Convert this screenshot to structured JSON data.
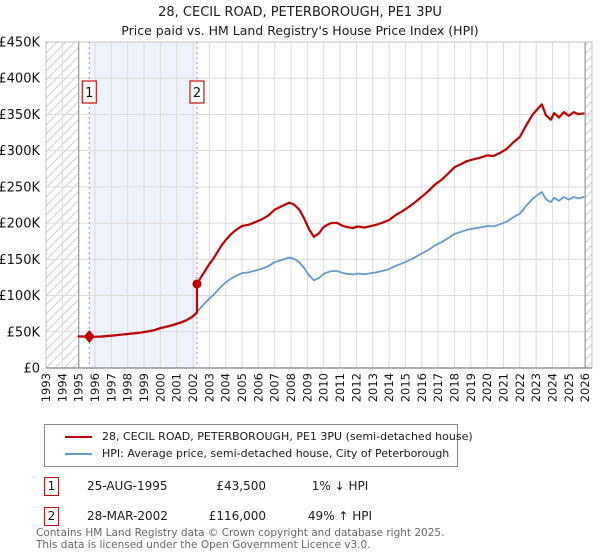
{
  "title": "28, CECIL ROAD, PETERBOROUGH, PE1 3PU",
  "subtitle": "Price paid vs. HM Land Registry's House Price Index (HPI)",
  "colors": {
    "property_line": "#c00000",
    "hpi_line": "#6699cc",
    "sale_dotted_line": "#f47c7c",
    "between_sales_shade": "#eef2fb",
    "grid": "#dcdcdc",
    "plot_border": "#c4c4c4",
    "axis_line": "#808080",
    "hatch_line": "#cfcfcf",
    "hatch_edge": "#999999",
    "marker_box_border": "#c41111"
  },
  "chart_data": {
    "type": "line",
    "title": "Price paid vs. HM Land Registry's House Price Index (HPI)",
    "unit": "GBP thousands",
    "x_axis": {
      "range": [
        1993,
        2026.42
      ],
      "ticks": [
        "1993",
        "1994",
        "1995",
        "1996",
        "1997",
        "1998",
        "1999",
        "2000",
        "2001",
        "2002",
        "2003",
        "2004",
        "2005",
        "2006",
        "2007",
        "2008",
        "2009",
        "2010",
        "2011",
        "2012",
        "2013",
        "2014",
        "2015",
        "2016",
        "2017",
        "2018",
        "2019",
        "2020",
        "2021",
        "2022",
        "2023",
        "2024",
        "2025",
        "2026"
      ]
    },
    "y_axis": {
      "range": [
        0,
        450
      ],
      "tick_values": [
        0,
        50,
        100,
        150,
        200,
        250,
        300,
        350,
        400,
        450
      ],
      "tick_labels": [
        "£0",
        "£50K",
        "£100K",
        "£150K",
        "£200K",
        "£250K",
        "£300K",
        "£350K",
        "£400K",
        "£450K"
      ]
    },
    "grid": true,
    "no_data_hatch_regions": [
      [
        1993,
        1995.0
      ],
      [
        2026.0,
        2026.42
      ]
    ],
    "shaded_region": [
      1995.65,
      2002.24
    ],
    "sale_markers": [
      {
        "label": "1",
        "x": 1995.65,
        "y": 43.5,
        "shape": "diamond"
      },
      {
        "label": "2",
        "x": 2002.24,
        "y": 116,
        "shape": "circle"
      }
    ],
    "series": [
      {
        "name": "HPI: Average price, semi-detached house, City of Peterborough",
        "color": "#6699cc",
        "width": 1.8,
        "points": [
          [
            1995.0,
            44
          ],
          [
            1995.3,
            43.7
          ],
          [
            1995.65,
            44
          ],
          [
            1996.0,
            43.4
          ],
          [
            1996.4,
            43.9
          ],
          [
            1996.8,
            44.6
          ],
          [
            1997.2,
            45.4
          ],
          [
            1997.6,
            46.3
          ],
          [
            1998.0,
            47.5
          ],
          [
            1998.4,
            48.2
          ],
          [
            1998.8,
            49.3
          ],
          [
            1999.2,
            50.8
          ],
          [
            1999.6,
            52.5
          ],
          [
            2000.0,
            55.5
          ],
          [
            2000.4,
            57.5
          ],
          [
            2000.8,
            60
          ],
          [
            2001.2,
            63
          ],
          [
            2001.6,
            66.5
          ],
          [
            2002.0,
            72
          ],
          [
            2002.24,
            77.5
          ],
          [
            2002.5,
            84
          ],
          [
            2002.75,
            90
          ],
          [
            2003.0,
            96
          ],
          [
            2003.25,
            101
          ],
          [
            2003.5,
            107
          ],
          [
            2003.75,
            113
          ],
          [
            2004.0,
            118
          ],
          [
            2004.3,
            123
          ],
          [
            2004.6,
            127
          ],
          [
            2005.0,
            131
          ],
          [
            2005.4,
            132
          ],
          [
            2005.8,
            134.5
          ],
          [
            2006.2,
            137
          ],
          [
            2006.6,
            140.5
          ],
          [
            2007.0,
            146
          ],
          [
            2007.4,
            149
          ],
          [
            2007.9,
            152.5
          ],
          [
            2008.2,
            150.5
          ],
          [
            2008.5,
            146
          ],
          [
            2008.8,
            138
          ],
          [
            2009.1,
            128
          ],
          [
            2009.4,
            121
          ],
          [
            2009.7,
            124
          ],
          [
            2010.0,
            130
          ],
          [
            2010.4,
            133.5
          ],
          [
            2010.8,
            134
          ],
          [
            2011.1,
            131.5
          ],
          [
            2011.4,
            130
          ],
          [
            2011.8,
            129
          ],
          [
            2012.1,
            130.5
          ],
          [
            2012.5,
            129.5
          ],
          [
            2012.9,
            131
          ],
          [
            2013.2,
            132
          ],
          [
            2013.6,
            134
          ],
          [
            2014.0,
            136.5
          ],
          [
            2014.4,
            141
          ],
          [
            2014.8,
            144.5
          ],
          [
            2015.2,
            148.5
          ],
          [
            2015.6,
            153
          ],
          [
            2016.0,
            158
          ],
          [
            2016.4,
            163
          ],
          [
            2016.8,
            169
          ],
          [
            2017.2,
            173.5
          ],
          [
            2017.6,
            179
          ],
          [
            2018.0,
            185
          ],
          [
            2018.4,
            188
          ],
          [
            2018.8,
            191
          ],
          [
            2019.2,
            192.5
          ],
          [
            2019.6,
            194
          ],
          [
            2020.0,
            196
          ],
          [
            2020.4,
            195.5
          ],
          [
            2020.8,
            198.5
          ],
          [
            2021.2,
            202
          ],
          [
            2021.6,
            208
          ],
          [
            2022.0,
            213
          ],
          [
            2022.4,
            224
          ],
          [
            2022.8,
            234
          ],
          [
            2023.1,
            239
          ],
          [
            2023.35,
            243
          ],
          [
            2023.6,
            233
          ],
          [
            2023.9,
            229
          ],
          [
            2024.1,
            235
          ],
          [
            2024.4,
            231
          ],
          [
            2024.7,
            236
          ],
          [
            2025.0,
            232.5
          ],
          [
            2025.3,
            236
          ],
          [
            2025.6,
            234
          ],
          [
            2025.9,
            236
          ]
        ]
      },
      {
        "name": "28, CECIL ROAD, PETERBOROUGH, PE1 3PU (semi-detached house)",
        "color": "#c00000",
        "width": 2.2,
        "points": [
          [
            1995.0,
            43.6
          ],
          [
            1995.3,
            43.3
          ],
          [
            1995.65,
            43.5
          ],
          [
            1996.0,
            43.0
          ],
          [
            1996.4,
            43.4
          ],
          [
            1996.8,
            44.2
          ],
          [
            1997.2,
            45.0
          ],
          [
            1997.6,
            45.9
          ],
          [
            1998.0,
            47.0
          ],
          [
            1998.4,
            47.8
          ],
          [
            1998.8,
            48.9
          ],
          [
            1999.2,
            50.3
          ],
          [
            1999.6,
            52.0
          ],
          [
            2000.0,
            55.0
          ],
          [
            2000.4,
            57.0
          ],
          [
            2000.8,
            59.5
          ],
          [
            2001.2,
            62.4
          ],
          [
            2001.6,
            65.9
          ],
          [
            2002.0,
            71.3
          ],
          [
            2002.24,
            76.8
          ],
          [
            2002.24,
            116
          ],
          [
            2002.5,
            125.7
          ],
          [
            2002.75,
            134.7
          ],
          [
            2003.0,
            143.7
          ],
          [
            2003.25,
            151.2
          ],
          [
            2003.5,
            160.2
          ],
          [
            2003.75,
            169.2
          ],
          [
            2004.0,
            176.6
          ],
          [
            2004.3,
            184.1
          ],
          [
            2004.6,
            190.1
          ],
          [
            2005.0,
            196.1
          ],
          [
            2005.4,
            197.6
          ],
          [
            2005.8,
            201.3
          ],
          [
            2006.2,
            205.1
          ],
          [
            2006.6,
            210.3
          ],
          [
            2007.0,
            218.5
          ],
          [
            2007.4,
            223
          ],
          [
            2007.9,
            228.3
          ],
          [
            2008.2,
            225.3
          ],
          [
            2008.5,
            218.6
          ],
          [
            2008.8,
            206.6
          ],
          [
            2009.1,
            191.6
          ],
          [
            2009.4,
            181.1
          ],
          [
            2009.7,
            185.6
          ],
          [
            2010.0,
            194.6
          ],
          [
            2010.4,
            199.8
          ],
          [
            2010.8,
            200.6
          ],
          [
            2011.1,
            196.8
          ],
          [
            2011.4,
            194.6
          ],
          [
            2011.8,
            193.1
          ],
          [
            2012.1,
            195.4
          ],
          [
            2012.5,
            193.8
          ],
          [
            2012.9,
            196.1
          ],
          [
            2013.2,
            197.6
          ],
          [
            2013.6,
            200.6
          ],
          [
            2014.0,
            204.3
          ],
          [
            2014.4,
            211.1
          ],
          [
            2014.8,
            216.3
          ],
          [
            2015.2,
            222.3
          ],
          [
            2015.6,
            229
          ],
          [
            2016.0,
            236.5
          ],
          [
            2016.4,
            244
          ],
          [
            2016.8,
            253
          ],
          [
            2017.2,
            259.7
          ],
          [
            2017.6,
            268
          ],
          [
            2018.0,
            277
          ],
          [
            2018.4,
            281.4
          ],
          [
            2018.8,
            285.9
          ],
          [
            2019.2,
            288.2
          ],
          [
            2019.6,
            290.4
          ],
          [
            2020.0,
            293.4
          ],
          [
            2020.4,
            292.6
          ],
          [
            2020.8,
            297.1
          ],
          [
            2021.2,
            302.4
          ],
          [
            2021.6,
            311.4
          ],
          [
            2022.0,
            318.9
          ],
          [
            2022.4,
            335.3
          ],
          [
            2022.8,
            350.3
          ],
          [
            2023.1,
            357.8
          ],
          [
            2023.35,
            363.8
          ],
          [
            2023.6,
            348.8
          ],
          [
            2023.9,
            342.8
          ],
          [
            2024.1,
            351.8
          ],
          [
            2024.4,
            345.8
          ],
          [
            2024.7,
            353.3
          ],
          [
            2025.0,
            348.1
          ],
          [
            2025.3,
            353.3
          ],
          [
            2025.6,
            350.3
          ],
          [
            2025.9,
            351.5
          ]
        ]
      }
    ]
  },
  "legend": {
    "items": [
      {
        "label": "28, CECIL ROAD, PETERBOROUGH, PE1 3PU (semi-detached house)",
        "color": "#c00000"
      },
      {
        "label": "HPI: Average price, semi-detached house, City of Peterborough",
        "color": "#6699cc"
      }
    ]
  },
  "annotations": [
    {
      "num": "1",
      "date": "25-AUG-1995",
      "price": "£43,500",
      "hpi": "1% ↓ HPI"
    },
    {
      "num": "2",
      "date": "28-MAR-2002",
      "price": "£116,000",
      "hpi": "49% ↑ HPI"
    }
  ],
  "footer": {
    "line1": "Contains HM Land Registry data © Crown copyright and database right 2025.",
    "line2": "This data is licensed under the Open Government Licence v3.0."
  }
}
